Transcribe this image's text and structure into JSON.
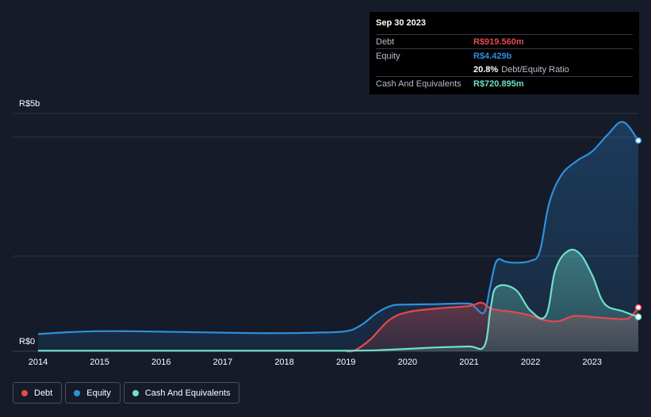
{
  "tooltip": {
    "date": "Sep 30 2023",
    "debt_label": "Debt",
    "debt_value": "R$919.560m",
    "equity_label": "Equity",
    "equity_value": "R$4.429b",
    "ratio_value": "20.8%",
    "ratio_label": "Debt/Equity Ratio",
    "cash_label": "Cash And Equivalents",
    "cash_value": "R$720.895m"
  },
  "colors": {
    "debt": "#e5484d",
    "equity": "#2f8fdd",
    "cash": "#6fe0cc",
    "background": "#151b29"
  },
  "legend": [
    {
      "label": "Debt",
      "color": "#e5484d"
    },
    {
      "label": "Equity",
      "color": "#2f8fdd"
    },
    {
      "label": "Cash And Equivalents",
      "color": "#6fe0cc"
    }
  ],
  "chart_data": {
    "type": "area",
    "title": "",
    "xlabel": "",
    "ylabel": "",
    "xlim": [
      2014.0,
      2023.75
    ],
    "ylim": [
      0,
      5.0
    ],
    "y_tick_labels": [
      {
        "value": 5.0,
        "label": "R$5b"
      },
      {
        "value": 0,
        "label": "R$0"
      }
    ],
    "gridlines": [
      5.0,
      4.5,
      2.0
    ],
    "x_ticks": [
      2014,
      2015,
      2016,
      2017,
      2018,
      2019,
      2020,
      2021,
      2022,
      2023
    ],
    "x_tick_labels": [
      "2014",
      "2015",
      "2016",
      "2017",
      "2018",
      "2019",
      "2020",
      "2021",
      "2022",
      "2023"
    ],
    "series": [
      {
        "name": "Equity",
        "key": "equity",
        "points": [
          [
            2014.0,
            0.36
          ],
          [
            2014.5,
            0.4
          ],
          [
            2015.0,
            0.42
          ],
          [
            2015.5,
            0.42
          ],
          [
            2016.0,
            0.41
          ],
          [
            2016.5,
            0.4
          ],
          [
            2017.0,
            0.39
          ],
          [
            2017.5,
            0.38
          ],
          [
            2018.0,
            0.38
          ],
          [
            2018.5,
            0.39
          ],
          [
            2019.0,
            0.42
          ],
          [
            2019.25,
            0.55
          ],
          [
            2019.5,
            0.8
          ],
          [
            2019.75,
            0.96
          ],
          [
            2020.0,
            0.98
          ],
          [
            2020.5,
            0.99
          ],
          [
            2021.0,
            1.0
          ],
          [
            2021.1,
            0.92
          ],
          [
            2021.25,
            0.82
          ],
          [
            2021.35,
            1.4
          ],
          [
            2021.45,
            1.9
          ],
          [
            2021.6,
            1.88
          ],
          [
            2021.75,
            1.86
          ],
          [
            2022.0,
            1.9
          ],
          [
            2022.15,
            2.1
          ],
          [
            2022.3,
            3.1
          ],
          [
            2022.5,
            3.7
          ],
          [
            2022.75,
            4.0
          ],
          [
            2023.0,
            4.2
          ],
          [
            2023.25,
            4.55
          ],
          [
            2023.5,
            4.82
          ],
          [
            2023.75,
            4.429
          ]
        ]
      },
      {
        "name": "Debt",
        "key": "debt",
        "points": [
          [
            2019.0,
            0.0
          ],
          [
            2019.15,
            0.02
          ],
          [
            2019.4,
            0.25
          ],
          [
            2019.7,
            0.65
          ],
          [
            2020.0,
            0.82
          ],
          [
            2020.5,
            0.9
          ],
          [
            2021.0,
            0.95
          ],
          [
            2021.2,
            1.02
          ],
          [
            2021.35,
            0.9
          ],
          [
            2021.5,
            0.86
          ],
          [
            2021.75,
            0.82
          ],
          [
            2022.0,
            0.75
          ],
          [
            2022.2,
            0.66
          ],
          [
            2022.45,
            0.63
          ],
          [
            2022.7,
            0.74
          ],
          [
            2023.0,
            0.72
          ],
          [
            2023.4,
            0.68
          ],
          [
            2023.6,
            0.7
          ],
          [
            2023.75,
            0.91956
          ]
        ]
      },
      {
        "name": "Cash And Equivalents",
        "key": "cash",
        "points": [
          [
            2014.0,
            0.01
          ],
          [
            2015.0,
            0.01
          ],
          [
            2016.0,
            0.01
          ],
          [
            2017.0,
            0.01
          ],
          [
            2018.0,
            0.01
          ],
          [
            2019.0,
            0.01
          ],
          [
            2019.5,
            0.02
          ],
          [
            2020.0,
            0.05
          ],
          [
            2020.5,
            0.08
          ],
          [
            2021.0,
            0.1
          ],
          [
            2021.25,
            0.11
          ],
          [
            2021.35,
            0.9
          ],
          [
            2021.45,
            1.35
          ],
          [
            2021.75,
            1.3
          ],
          [
            2022.0,
            0.85
          ],
          [
            2022.25,
            0.75
          ],
          [
            2022.4,
            1.7
          ],
          [
            2022.6,
            2.1
          ],
          [
            2022.8,
            2.05
          ],
          [
            2023.0,
            1.6
          ],
          [
            2023.2,
            1.0
          ],
          [
            2023.5,
            0.84
          ],
          [
            2023.75,
            0.720895
          ]
        ]
      }
    ]
  }
}
